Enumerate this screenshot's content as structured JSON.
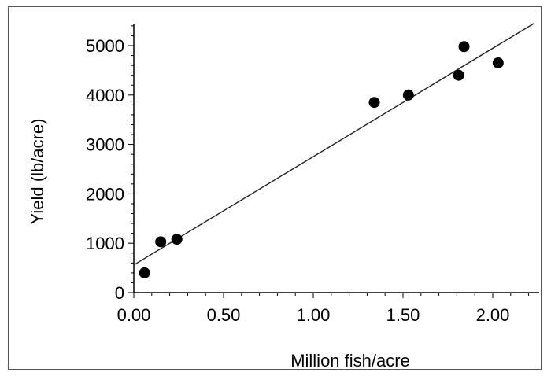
{
  "chart_data": {
    "type": "scatter",
    "title": "",
    "xlabel": "Million fish/acre",
    "ylabel": "Yield (lb/acre)",
    "xlim": [
      0,
      2.25
    ],
    "ylim": [
      0,
      5500
    ],
    "x_ticks": [
      "0.00",
      "0.50",
      "1.00",
      "1.50",
      "2.00"
    ],
    "y_ticks": [
      "0",
      "1000",
      "2000",
      "3000",
      "4000",
      "5000"
    ],
    "grid": false,
    "series": [
      {
        "points": [
          {
            "x": 0.06,
            "y": 400
          },
          {
            "x": 0.15,
            "y": 1030
          },
          {
            "x": 0.24,
            "y": 1080
          },
          {
            "x": 1.34,
            "y": 3850
          },
          {
            "x": 1.53,
            "y": 4000
          },
          {
            "x": 1.81,
            "y": 4400
          },
          {
            "x": 1.84,
            "y": 4980
          },
          {
            "x": 2.03,
            "y": 4650
          }
        ]
      }
    ],
    "trendline": {
      "x_start": 0.0,
      "y_start": 560,
      "x_end": 2.23,
      "y_end": 5450
    },
    "colors": {
      "points": "#000000",
      "line": "#222222",
      "axis": "#000000"
    }
  }
}
